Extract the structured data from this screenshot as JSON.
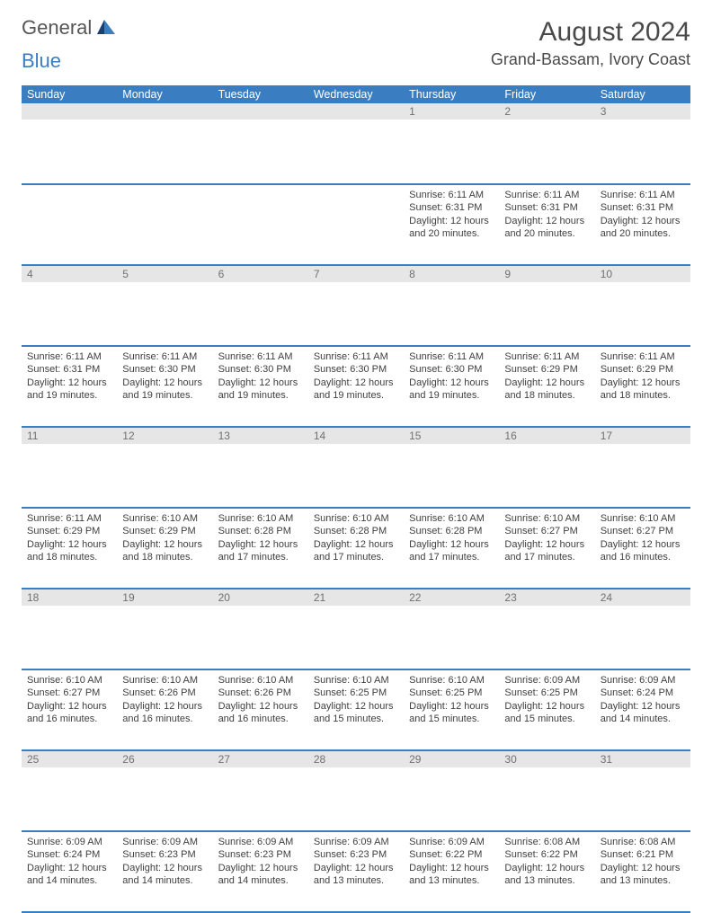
{
  "logo": {
    "part1": "General",
    "part2": "Blue"
  },
  "title": "August 2024",
  "location": "Grand-Bassam, Ivory Coast",
  "colors": {
    "header_bg": "#3a7ec1",
    "daynum_bg": "#e6e6e6",
    "row_border": "#3a7ec1",
    "text": "#404040"
  },
  "week_headers": [
    "Sunday",
    "Monday",
    "Tuesday",
    "Wednesday",
    "Thursday",
    "Friday",
    "Saturday"
  ],
  "weeks": [
    [
      null,
      null,
      null,
      null,
      {
        "n": "1",
        "sr": "6:11 AM",
        "ss": "6:31 PM",
        "dl": "12 hours and 20 minutes."
      },
      {
        "n": "2",
        "sr": "6:11 AM",
        "ss": "6:31 PM",
        "dl": "12 hours and 20 minutes."
      },
      {
        "n": "3",
        "sr": "6:11 AM",
        "ss": "6:31 PM",
        "dl": "12 hours and 20 minutes."
      }
    ],
    [
      {
        "n": "4",
        "sr": "6:11 AM",
        "ss": "6:31 PM",
        "dl": "12 hours and 19 minutes."
      },
      {
        "n": "5",
        "sr": "6:11 AM",
        "ss": "6:30 PM",
        "dl": "12 hours and 19 minutes."
      },
      {
        "n": "6",
        "sr": "6:11 AM",
        "ss": "6:30 PM",
        "dl": "12 hours and 19 minutes."
      },
      {
        "n": "7",
        "sr": "6:11 AM",
        "ss": "6:30 PM",
        "dl": "12 hours and 19 minutes."
      },
      {
        "n": "8",
        "sr": "6:11 AM",
        "ss": "6:30 PM",
        "dl": "12 hours and 19 minutes."
      },
      {
        "n": "9",
        "sr": "6:11 AM",
        "ss": "6:29 PM",
        "dl": "12 hours and 18 minutes."
      },
      {
        "n": "10",
        "sr": "6:11 AM",
        "ss": "6:29 PM",
        "dl": "12 hours and 18 minutes."
      }
    ],
    [
      {
        "n": "11",
        "sr": "6:11 AM",
        "ss": "6:29 PM",
        "dl": "12 hours and 18 minutes."
      },
      {
        "n": "12",
        "sr": "6:10 AM",
        "ss": "6:29 PM",
        "dl": "12 hours and 18 minutes."
      },
      {
        "n": "13",
        "sr": "6:10 AM",
        "ss": "6:28 PM",
        "dl": "12 hours and 17 minutes."
      },
      {
        "n": "14",
        "sr": "6:10 AM",
        "ss": "6:28 PM",
        "dl": "12 hours and 17 minutes."
      },
      {
        "n": "15",
        "sr": "6:10 AM",
        "ss": "6:28 PM",
        "dl": "12 hours and 17 minutes."
      },
      {
        "n": "16",
        "sr": "6:10 AM",
        "ss": "6:27 PM",
        "dl": "12 hours and 17 minutes."
      },
      {
        "n": "17",
        "sr": "6:10 AM",
        "ss": "6:27 PM",
        "dl": "12 hours and 16 minutes."
      }
    ],
    [
      {
        "n": "18",
        "sr": "6:10 AM",
        "ss": "6:27 PM",
        "dl": "12 hours and 16 minutes."
      },
      {
        "n": "19",
        "sr": "6:10 AM",
        "ss": "6:26 PM",
        "dl": "12 hours and 16 minutes."
      },
      {
        "n": "20",
        "sr": "6:10 AM",
        "ss": "6:26 PM",
        "dl": "12 hours and 16 minutes."
      },
      {
        "n": "21",
        "sr": "6:10 AM",
        "ss": "6:25 PM",
        "dl": "12 hours and 15 minutes."
      },
      {
        "n": "22",
        "sr": "6:10 AM",
        "ss": "6:25 PM",
        "dl": "12 hours and 15 minutes."
      },
      {
        "n": "23",
        "sr": "6:09 AM",
        "ss": "6:25 PM",
        "dl": "12 hours and 15 minutes."
      },
      {
        "n": "24",
        "sr": "6:09 AM",
        "ss": "6:24 PM",
        "dl": "12 hours and 14 minutes."
      }
    ],
    [
      {
        "n": "25",
        "sr": "6:09 AM",
        "ss": "6:24 PM",
        "dl": "12 hours and 14 minutes."
      },
      {
        "n": "26",
        "sr": "6:09 AM",
        "ss": "6:23 PM",
        "dl": "12 hours and 14 minutes."
      },
      {
        "n": "27",
        "sr": "6:09 AM",
        "ss": "6:23 PM",
        "dl": "12 hours and 14 minutes."
      },
      {
        "n": "28",
        "sr": "6:09 AM",
        "ss": "6:23 PM",
        "dl": "12 hours and 13 minutes."
      },
      {
        "n": "29",
        "sr": "6:09 AM",
        "ss": "6:22 PM",
        "dl": "12 hours and 13 minutes."
      },
      {
        "n": "30",
        "sr": "6:08 AM",
        "ss": "6:22 PM",
        "dl": "12 hours and 13 minutes."
      },
      {
        "n": "31",
        "sr": "6:08 AM",
        "ss": "6:21 PM",
        "dl": "12 hours and 13 minutes."
      }
    ]
  ],
  "labels": {
    "sunrise": "Sunrise:",
    "sunset": "Sunset:",
    "daylight": "Daylight:"
  }
}
